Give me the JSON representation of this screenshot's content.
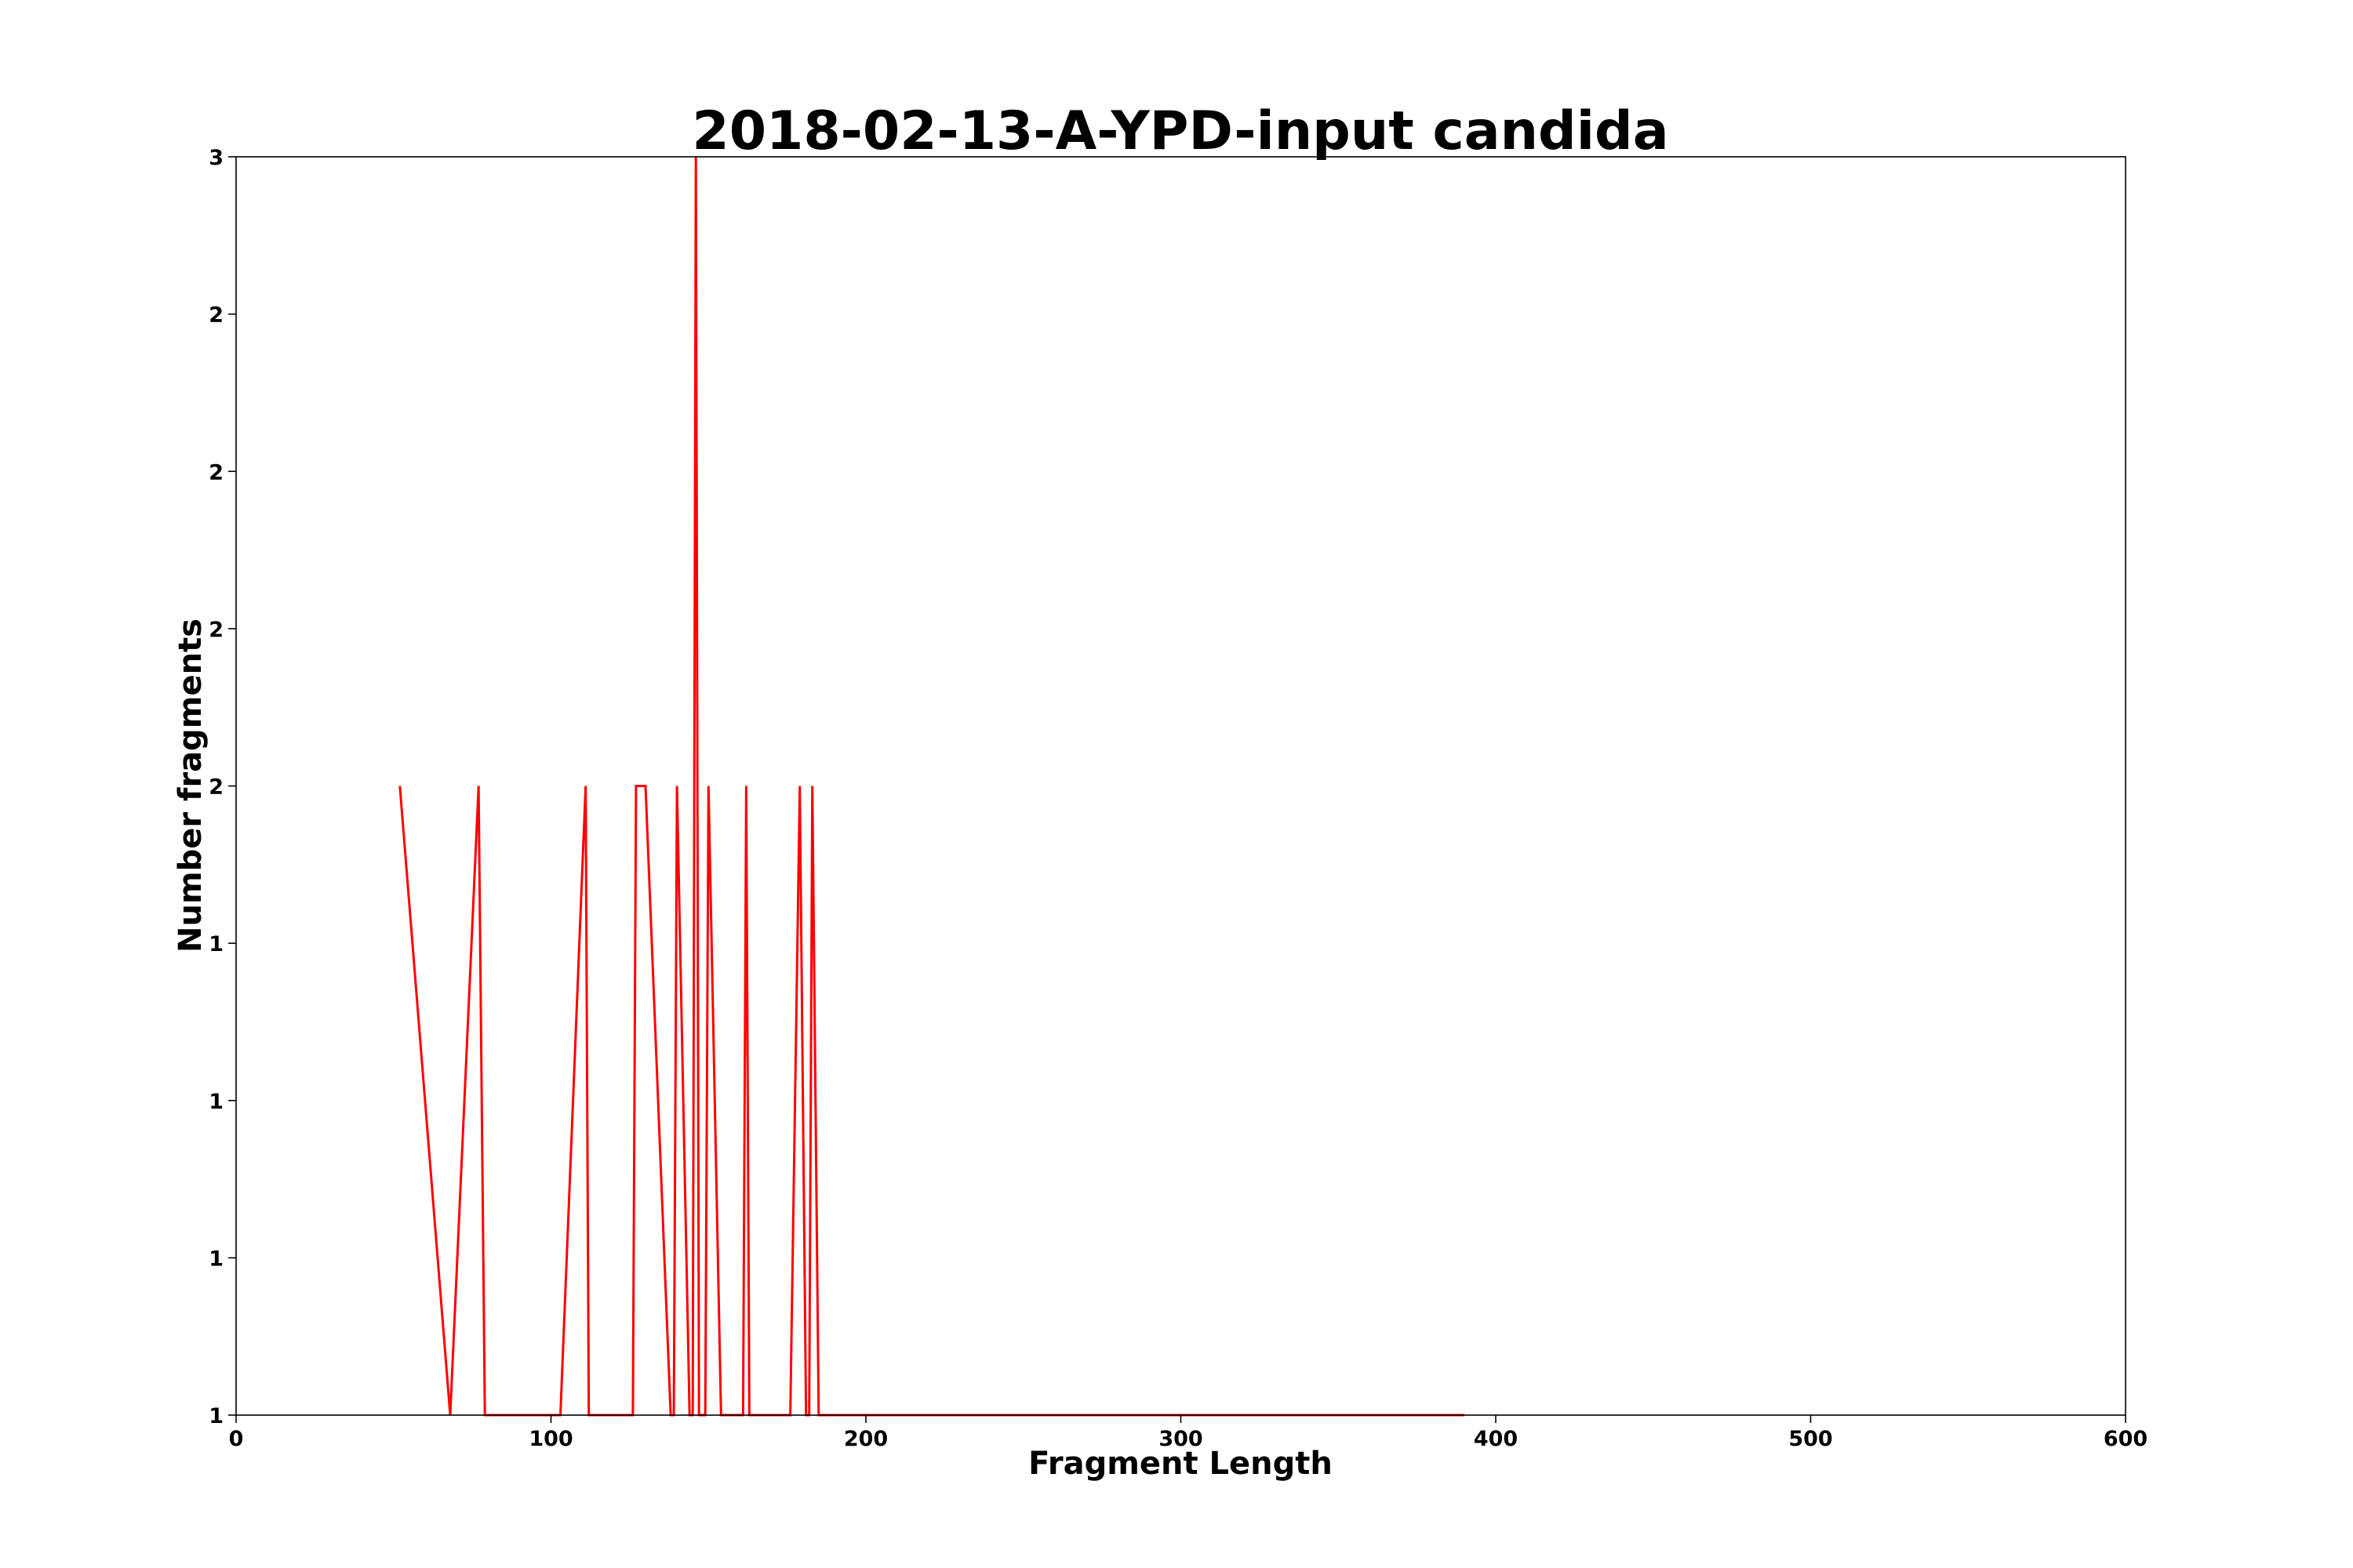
{
  "chart_data": {
    "type": "line",
    "title": "2018-02-13-A-YPD-input candida",
    "xlabel": "Fragment Length",
    "ylabel": "Number fragments",
    "xlim": [
      0,
      600
    ],
    "ylim": [
      1,
      3
    ],
    "grid": false,
    "x_ticks": [
      {
        "value": 0,
        "label": "0"
      },
      {
        "value": 100,
        "label": "100"
      },
      {
        "value": 200,
        "label": "200"
      },
      {
        "value": 300,
        "label": "300"
      },
      {
        "value": 400,
        "label": "400"
      },
      {
        "value": 500,
        "label": "500"
      },
      {
        "value": 600,
        "label": "600"
      }
    ],
    "y_ticks": [
      {
        "value": 1.0,
        "label": "1"
      },
      {
        "value": 1.25,
        "label": "1"
      },
      {
        "value": 1.5,
        "label": "1"
      },
      {
        "value": 1.75,
        "label": "1"
      },
      {
        "value": 2.0,
        "label": "2"
      },
      {
        "value": 2.25,
        "label": "2"
      },
      {
        "value": 2.5,
        "label": "2"
      },
      {
        "value": 2.75,
        "label": "2"
      },
      {
        "value": 3.0,
        "label": "3"
      }
    ],
    "series": [
      {
        "color": "#ff0000",
        "x": [
          52,
          68,
          77,
          79,
          103,
          111,
          112,
          126,
          127,
          130,
          138,
          139,
          140,
          144,
          145,
          146,
          147,
          148,
          149,
          150,
          154,
          156,
          157,
          161,
          162,
          163,
          176,
          179,
          181,
          182,
          183,
          185,
          390
        ],
        "y": [
          2,
          1,
          2,
          1,
          1,
          2,
          1,
          1,
          2,
          2,
          1,
          1,
          2,
          1,
          1,
          3,
          1,
          1,
          1,
          2,
          1,
          1,
          1,
          1,
          2,
          1,
          1,
          2,
          1,
          1,
          2,
          1,
          1
        ]
      }
    ]
  }
}
